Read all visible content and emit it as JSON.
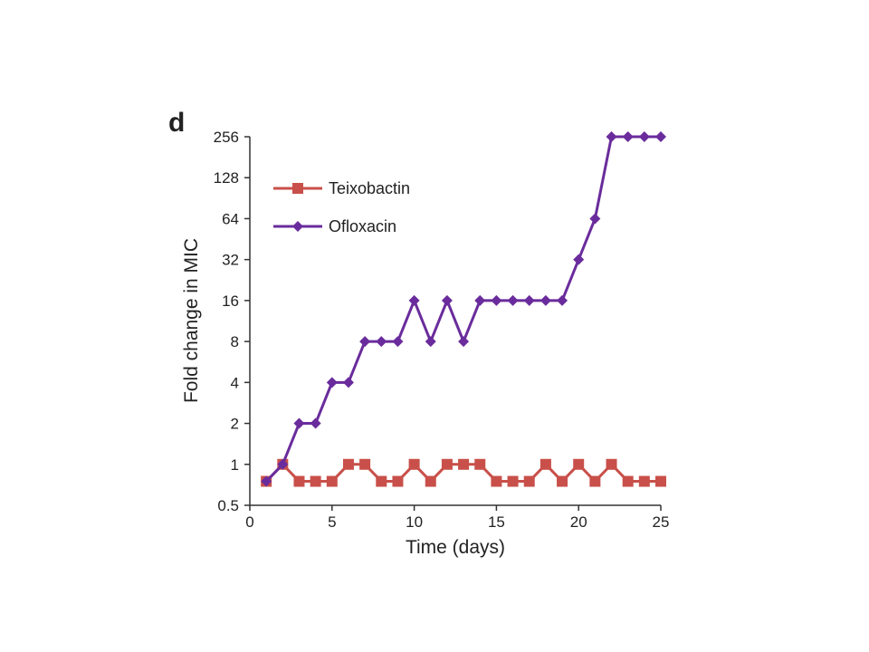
{
  "panel_label": "d",
  "chart_data": {
    "type": "line",
    "title": "",
    "xlabel": "Time (days)",
    "ylabel": "Fold change in MIC",
    "xlim": [
      0,
      25
    ],
    "ylim": [
      0.5,
      256
    ],
    "yscale": "log2",
    "xticks": [
      0,
      5,
      10,
      15,
      20,
      25
    ],
    "yticks": [
      0.5,
      1,
      2,
      4,
      8,
      16,
      32,
      64,
      128,
      256
    ],
    "ytick_labels": [
      "0.5",
      "1",
      "2",
      "4",
      "8",
      "16",
      "32",
      "64",
      "128",
      "256"
    ],
    "grid": false,
    "legend_position": "top-left",
    "x": [
      1,
      2,
      3,
      4,
      5,
      6,
      7,
      8,
      9,
      10,
      11,
      12,
      13,
      14,
      15,
      16,
      17,
      18,
      19,
      20,
      21,
      22,
      23,
      24,
      25
    ],
    "series": [
      {
        "name": "Teixobactin",
        "color": "#c9504a",
        "marker": "square",
        "values": [
          0.75,
          1,
          0.75,
          0.75,
          0.75,
          1,
          1,
          0.75,
          0.75,
          1,
          0.75,
          1,
          1,
          1,
          0.75,
          0.75,
          0.75,
          1,
          0.75,
          1,
          0.75,
          1,
          0.75,
          0.75,
          0.75
        ]
      },
      {
        "name": "Ofloxacin",
        "color": "#6a2c9c",
        "marker": "diamond",
        "values": [
          0.75,
          1,
          2,
          2,
          4,
          4,
          8,
          8,
          8,
          16,
          8,
          16,
          8,
          16,
          16,
          16,
          16,
          16,
          16,
          32,
          64,
          256,
          256,
          256,
          256
        ]
      }
    ]
  }
}
